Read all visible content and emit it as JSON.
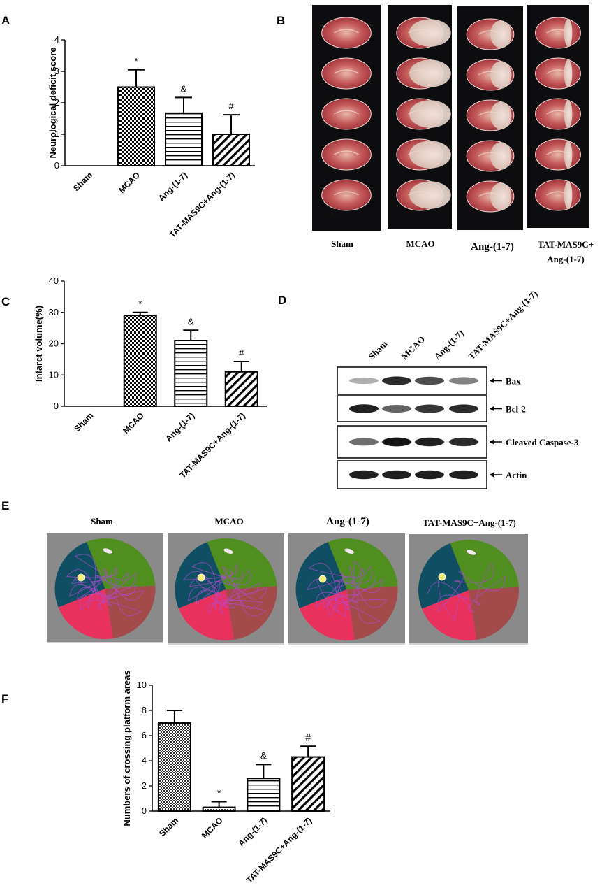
{
  "panel_labels": {
    "a": "A",
    "b": "B",
    "c": "C",
    "d": "D",
    "e": "E",
    "f": "F",
    "b_overlay": "C"
  },
  "chart_data": [
    {
      "panel": "A",
      "type": "bar",
      "title": "",
      "xlabel": "",
      "ylabel": "Neurological deficit score",
      "ylim": [
        0,
        4
      ],
      "yticks": [
        "0",
        "1",
        "2",
        "3",
        "4"
      ],
      "categories": [
        "Sham",
        "MCAO",
        "Ang-(1-7)",
        "TAT-MAS9C+Ang-(1-7)"
      ],
      "values": [
        0,
        2.5,
        1.67,
        1.0
      ],
      "errors": [
        0,
        0.55,
        0.5,
        0.62
      ],
      "significance": [
        "",
        "*",
        "&",
        "#"
      ],
      "patterns": [
        "none",
        "checker",
        "hlines",
        "diag"
      ]
    },
    {
      "panel": "C",
      "type": "bar",
      "title": "",
      "xlabel": "",
      "ylabel": "Infarct volume(%)",
      "ylim": [
        0,
        40
      ],
      "yticks": [
        "0",
        "10",
        "20",
        "30",
        "40"
      ],
      "categories": [
        "Sham",
        "MCAO",
        "Ang-(1-7)",
        "TAT-MAS9C+Ang-(1-7)"
      ],
      "values": [
        0,
        29,
        21,
        11
      ],
      "errors": [
        0,
        1.0,
        3.3,
        3.3
      ],
      "significance": [
        "",
        "*",
        "&",
        "#"
      ],
      "patterns": [
        "none",
        "checker",
        "hlines",
        "diag"
      ]
    },
    {
      "panel": "F",
      "type": "bar",
      "title": "",
      "xlabel": "",
      "ylabel": "Numbers of crossing platform areas",
      "ylim": [
        0,
        10
      ],
      "yticks": [
        "0",
        "2",
        "4",
        "6",
        "8",
        "10"
      ],
      "categories": [
        "Sham",
        "MCAO",
        "Ang-(1-7)",
        "TAT-MAS9C+Ang-(1-7)"
      ],
      "values": [
        7.0,
        0.3,
        2.6,
        4.3
      ],
      "errors": [
        1.0,
        0.45,
        1.1,
        0.85
      ],
      "significance": [
        "",
        "*",
        "&",
        "#"
      ],
      "patterns": [
        "finecheck",
        "dots",
        "hlines",
        "diag"
      ]
    }
  ],
  "panel_b": {
    "group_labels": [
      "Sham",
      "MCAO",
      "Ang-(1-7)",
      "TAT-MAS9C+",
      "Ang-(1-7)"
    ]
  },
  "panel_d": {
    "lane_labels": [
      "Sham",
      "MCAO",
      "Ang-(1-7)",
      "TAT-MAS9C+Ang-(1-7)"
    ],
    "bands": [
      {
        "label": "Bax",
        "intensities": [
          0.25,
          0.85,
          0.7,
          0.45
        ]
      },
      {
        "label": "Bcl-2",
        "intensities": [
          0.9,
          0.6,
          0.8,
          0.85
        ]
      },
      {
        "label": "Cleaved Caspase-3",
        "intensities": [
          0.55,
          0.95,
          0.9,
          0.85
        ]
      },
      {
        "label": "Actin",
        "intensities": [
          0.9,
          0.9,
          0.9,
          0.9
        ]
      }
    ]
  },
  "panel_e": {
    "group_labels": [
      "Sham",
      "MCAO",
      "Ang-(1-7)",
      "TAT-MAS9C+Ang-(1-7)"
    ],
    "colors": {
      "background": "#8a8a8a",
      "quadrant_nw": "#0f4e63",
      "quadrant_ne": "#4f8e1f",
      "quadrant_se": "#a34a4a",
      "quadrant_sw": "#e8315d",
      "platform": "#f2f07a",
      "path": "#b24ad6"
    }
  }
}
